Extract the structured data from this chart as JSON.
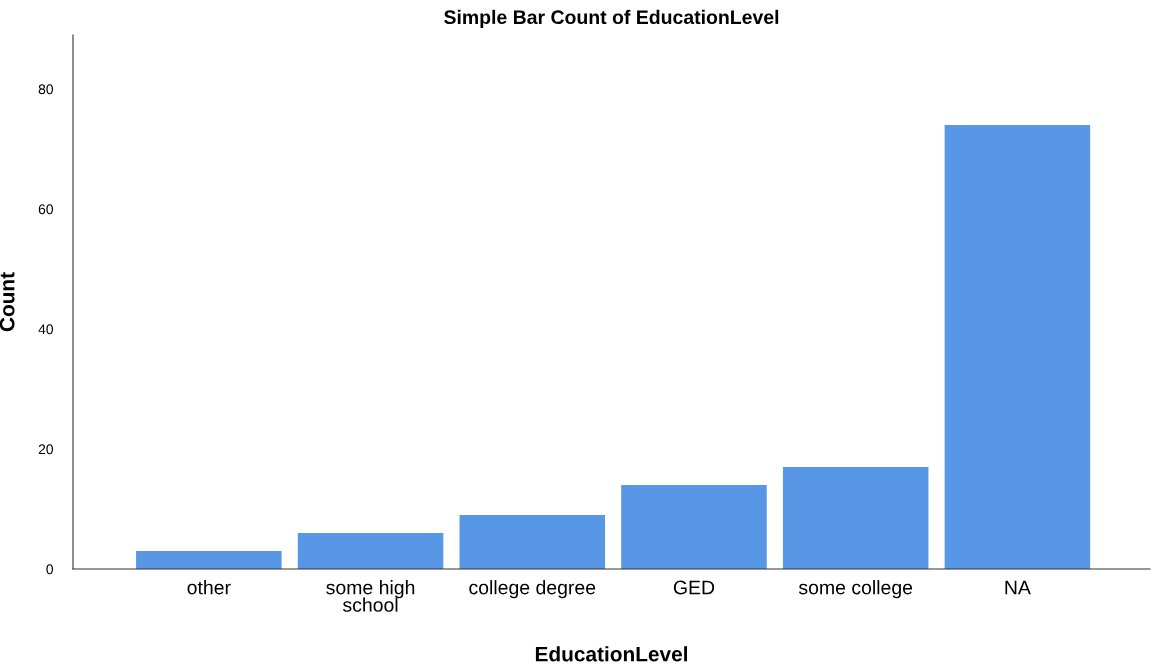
{
  "chart_data": {
    "type": "bar",
    "title": "Simple Bar Count of EducationLevel",
    "xlabel": "EducationLevel",
    "ylabel": "Count",
    "categories": [
      "other",
      "some high\nschool",
      "college degree",
      "GED",
      "some college",
      "NA"
    ],
    "values": [
      3,
      6,
      9,
      14,
      17,
      74
    ],
    "color": "#5797e5",
    "ylim": [
      0,
      89
    ],
    "yticks": [
      0,
      20,
      40,
      60,
      80
    ],
    "grid": false,
    "legend": false
  }
}
